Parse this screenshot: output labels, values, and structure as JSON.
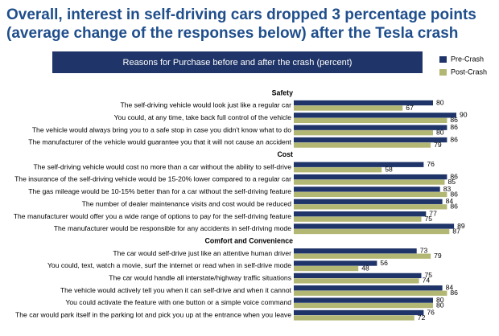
{
  "chart_data": {
    "type": "bar",
    "title": "Overall, interest in self-driving cars dropped 3 percentage points",
    "subtitle": "(average change of the responses below) after the Tesla crash",
    "header": "Reasons for Purchase before and after the crash (percent)",
    "series": [
      {
        "name": "Pre-Crash",
        "color": "#1f3468"
      },
      {
        "name": "Post-Crash",
        "color": "#b3b774"
      }
    ],
    "groups": [
      {
        "name": "Safety",
        "categories": [
          "The self-driving vehicle would look just like a regular car",
          "You could, at any time, take back full control of the vehicle",
          "The vehicle would always bring you to a safe stop in case you didn't know what to do",
          "The manufacturer of the vehicle would guarantee you that it will not cause an accident"
        ],
        "series": [
          {
            "values": [
              80,
              90,
              86,
              86
            ]
          },
          {
            "values": [
              67,
              86,
              80,
              79
            ]
          }
        ]
      },
      {
        "name": "Cost",
        "categories": [
          "The self-driving vehicle would cost no more than a car without the ability to self-drive",
          "The insurance of the self-driving vehicle would be 15-20% lower compared to a regular car",
          "The gas mileage would be 10-15% better than for a car without the self-driving feature",
          "The number of dealer maintenance visits and cost would be reduced",
          "The manufacturer would offer you a wide range of options to pay for the self-driving feature",
          "The manufacturer would be responsible for any accidents in self-driving mode"
        ],
        "series": [
          {
            "values": [
              76,
              86,
              83,
              84,
              77,
              89
            ]
          },
          {
            "values": [
              58,
              85,
              86,
              86,
              75,
              87
            ]
          }
        ]
      },
      {
        "name": "Comfort and Convenience",
        "categories": [
          "The car would self-drive just like an attentive human driver",
          "You could, text, watch a movie, surf the internet or read when in self-drive mode",
          "The car would handle all interstate/highway traffic situations",
          "The vehicle would actively tell you when it can self-drive and when it cannot",
          "You could activate the feature with one button or a simple voice command",
          "The car would park itself in the parking lot and pick you up at the entrance when you leave"
        ],
        "series": [
          {
            "values": [
              73,
              56,
              75,
              84,
              80,
              76
            ]
          },
          {
            "values": [
              79,
              48,
              74,
              86,
              80,
              72
            ]
          }
        ]
      }
    ]
  }
}
